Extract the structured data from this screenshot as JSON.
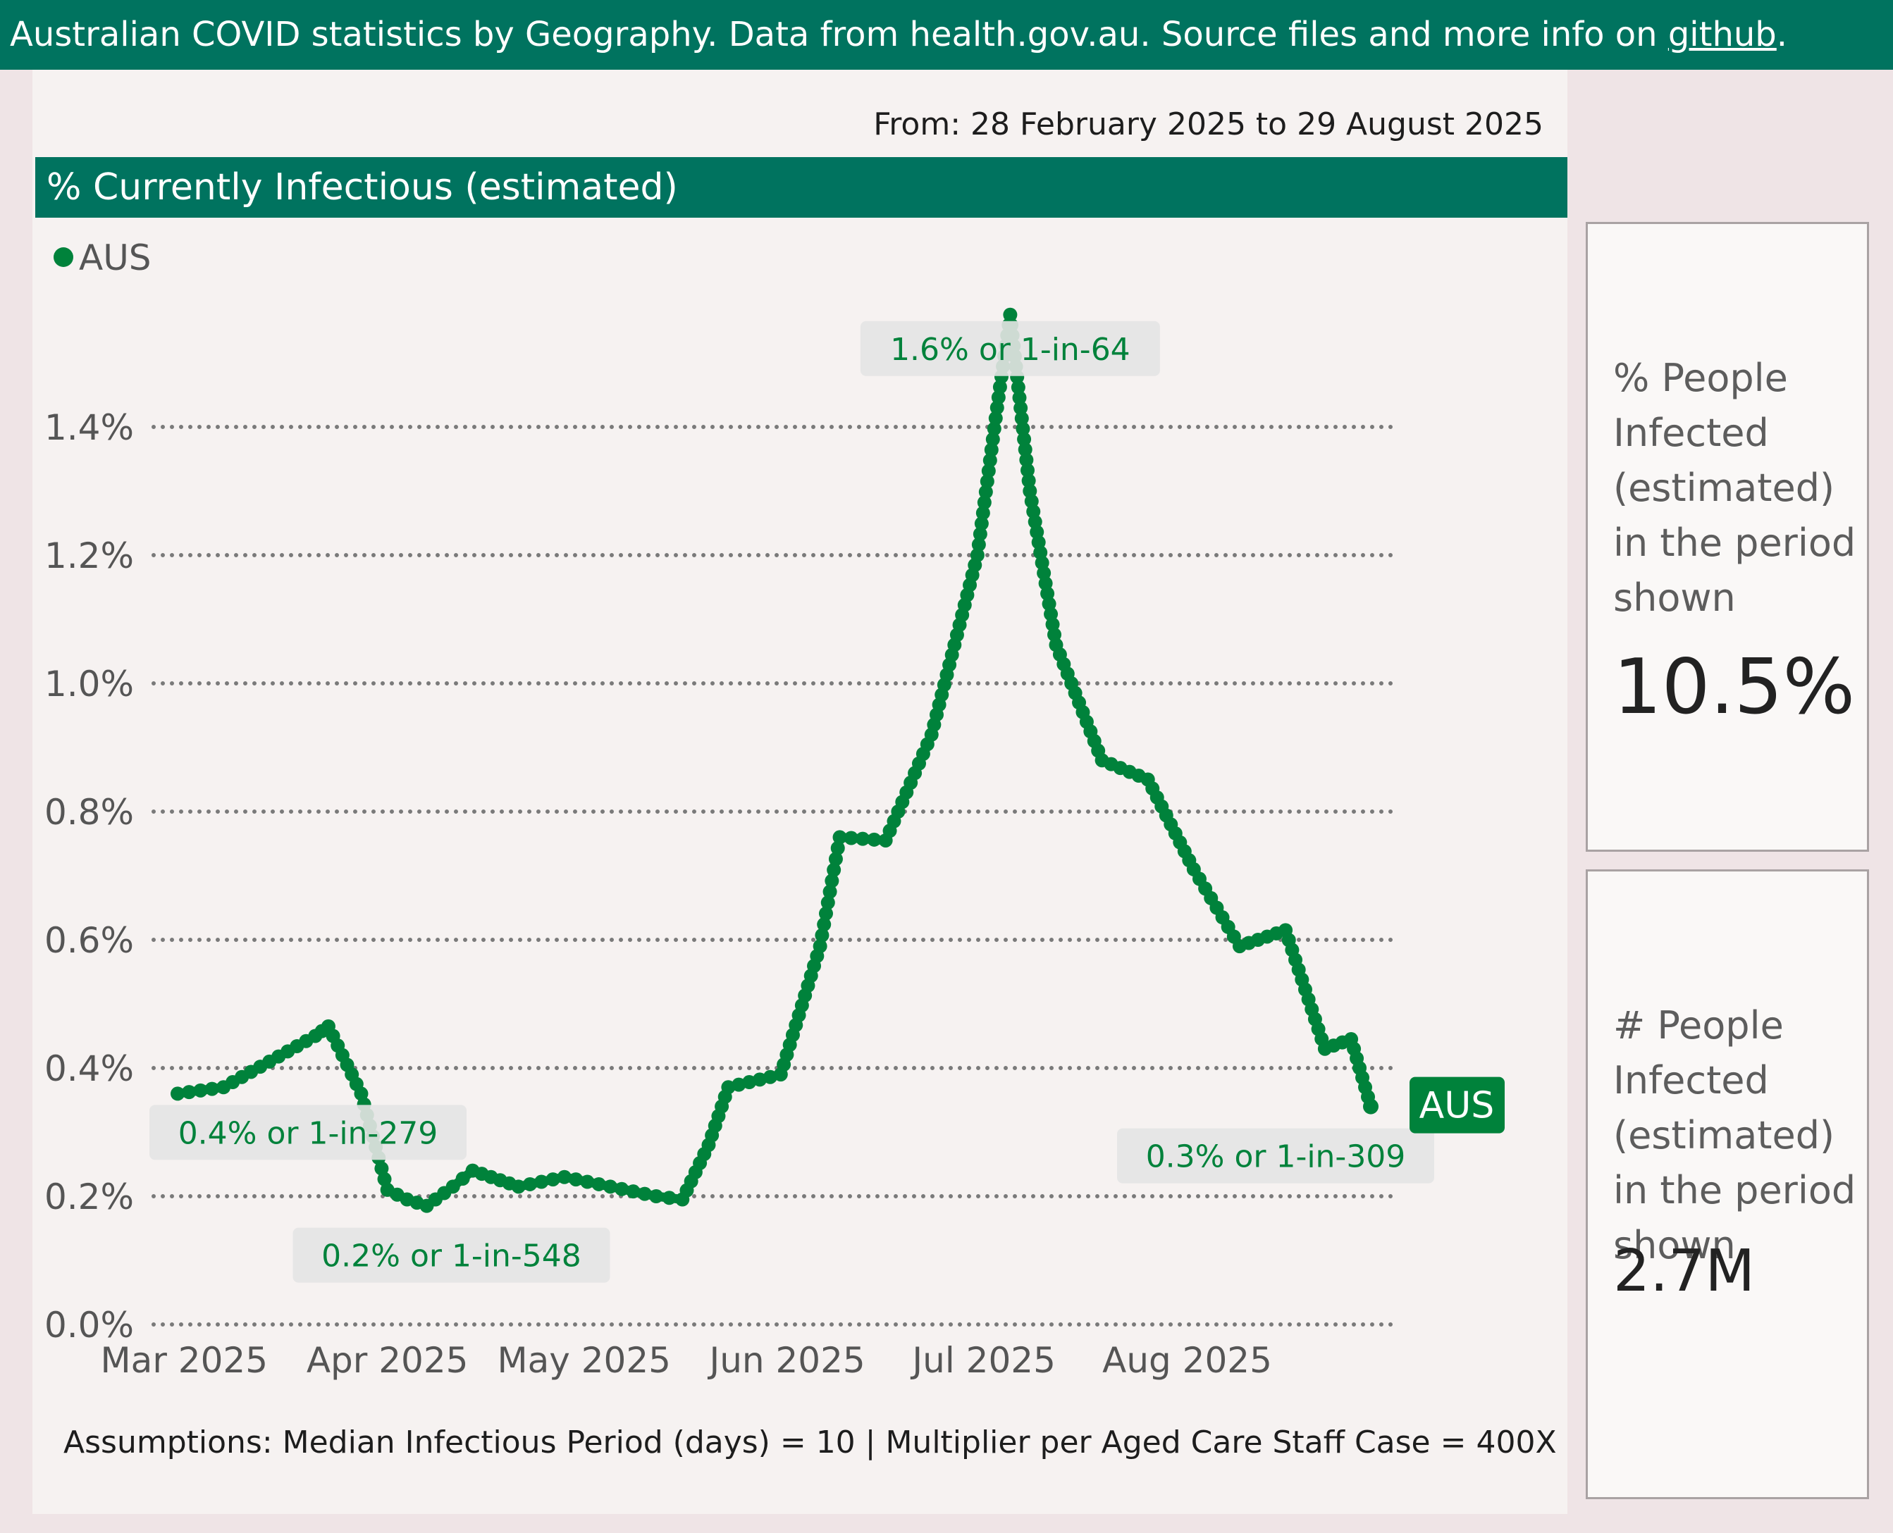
{
  "header": {
    "text": "Australian COVID statistics by Geography. Data from health.gov.au. Source files and more info on ",
    "link": "github",
    "suffix": "."
  },
  "date_range": "From: 28 February 2025 to 29 August 2025",
  "chart_title": "% Currently Infectious (estimated)",
  "assumptions": "Assumptions: Median Infectious Period (days) = 10 | Multiplier per Aged Care Staff Case = 400X",
  "colors": {
    "series": "#00823b",
    "header": "#00735f",
    "grid": "#7a7a7a"
  },
  "chart_data": {
    "type": "line",
    "title": "% Currently Infectious (estimated)",
    "xlabel": "",
    "ylabel": "",
    "x_range": [
      "2025-02-28",
      "2025-08-29"
    ],
    "ylim": [
      0,
      1.6
    ],
    "y_ticks": [
      0,
      0.2,
      0.4,
      0.6,
      0.8,
      1.0,
      1.2,
      1.4
    ],
    "y_tick_labels": [
      "0.0%",
      "0.2%",
      "0.4%",
      "0.6%",
      "0.8%",
      "1.0%",
      "1.2%",
      "1.4%"
    ],
    "x_ticks": [
      "2025-03-01",
      "2025-04-01",
      "2025-05-01",
      "2025-06-01",
      "2025-07-01",
      "2025-08-01"
    ],
    "x_tick_labels": [
      "Mar 2025",
      "Apr 2025",
      "May 2025",
      "Jun 2025",
      "Jul 2025",
      "Aug 2025"
    ],
    "grid": true,
    "legend": {
      "position": "top-left",
      "entries": [
        "AUS"
      ]
    },
    "series": [
      {
        "name": "AUS",
        "points": [
          [
            "2025-02-28",
            0.36
          ],
          [
            "2025-03-07",
            0.37
          ],
          [
            "2025-03-14",
            0.41
          ],
          [
            "2025-03-21",
            0.45
          ],
          [
            "2025-03-23",
            0.465
          ],
          [
            "2025-03-28",
            0.36
          ],
          [
            "2025-04-01",
            0.21
          ],
          [
            "2025-04-04",
            0.195
          ],
          [
            "2025-04-07",
            0.185
          ],
          [
            "2025-04-11",
            0.215
          ],
          [
            "2025-04-14",
            0.24
          ],
          [
            "2025-04-21",
            0.215
          ],
          [
            "2025-04-28",
            0.23
          ],
          [
            "2025-05-05",
            0.215
          ],
          [
            "2025-05-12",
            0.2
          ],
          [
            "2025-05-16",
            0.195
          ],
          [
            "2025-05-20",
            0.28
          ],
          [
            "2025-05-23",
            0.37
          ],
          [
            "2025-05-31",
            0.39
          ],
          [
            "2025-06-06",
            0.59
          ],
          [
            "2025-06-09",
            0.76
          ],
          [
            "2025-06-16",
            0.755
          ],
          [
            "2025-06-23",
            0.92
          ],
          [
            "2025-06-30",
            1.2
          ],
          [
            "2025-07-03",
            1.43
          ],
          [
            "2025-07-05",
            1.575
          ],
          [
            "2025-07-08",
            1.3
          ],
          [
            "2025-07-12",
            1.06
          ],
          [
            "2025-07-19",
            0.88
          ],
          [
            "2025-07-26",
            0.85
          ],
          [
            "2025-08-02",
            0.71
          ],
          [
            "2025-08-09",
            0.59
          ],
          [
            "2025-08-16",
            0.615
          ],
          [
            "2025-08-22",
            0.43
          ],
          [
            "2025-08-26",
            0.445
          ],
          [
            "2025-08-29",
            0.34
          ]
        ]
      }
    ],
    "annotations": [
      {
        "text": "1.6% or 1-in-64",
        "x": "2025-07-05",
        "y": 1.575
      },
      {
        "text": "0.4% or 1-in-279",
        "x": "2025-02-28",
        "y": 0.36
      },
      {
        "text": "0.2% or 1-in-548",
        "x": "2025-04-07",
        "y": 0.185
      },
      {
        "text": "0.3% or 1-in-309",
        "x": "2025-08-29",
        "y": 0.34
      }
    ],
    "end_label": "AUS"
  },
  "cards": [
    {
      "label": "% People Infected (estimated) in the period shown",
      "value": "10.5%"
    },
    {
      "label": "# People Infected (estimated) in the period shown",
      "value": "2.7M"
    }
  ]
}
